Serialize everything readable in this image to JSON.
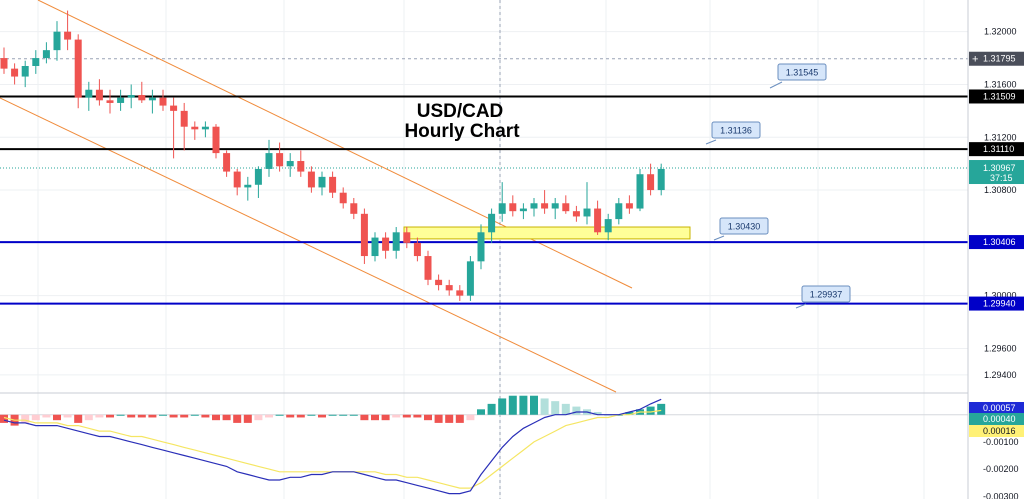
{
  "chart_data": {
    "type": "candlestick",
    "title": "USD/CAD",
    "subtitle": "Hourly Chart",
    "price_axis": {
      "ticks": [
        "1.32000",
        "1.31600",
        "1.31200",
        "1.30800",
        "1.30400",
        "1.30000",
        "1.29600",
        "1.29400"
      ],
      "tick_values": [
        1.32,
        1.316,
        1.312,
        1.308,
        1.304,
        1.3,
        1.296,
        1.294
      ],
      "range": [
        1.2927,
        1.3224
      ]
    },
    "current_price": {
      "label": "1.30967",
      "value": 1.30967,
      "countdown": "37:15"
    },
    "crosshair": {
      "label": "1.31795",
      "value": 1.31795
    },
    "horizontal_levels": [
      {
        "label": "1.31509",
        "value": 1.31509,
        "color": "#000000"
      },
      {
        "label": "1.31110",
        "value": 1.3111,
        "color": "#000000"
      },
      {
        "label": "1.30406",
        "value": 1.30406,
        "color": "#0000c8"
      },
      {
        "label": "1.29940",
        "value": 1.2994,
        "color": "#0000c8"
      }
    ],
    "callouts": [
      {
        "label": "1.31545",
        "value": 1.31545
      },
      {
        "label": "1.31136",
        "value": 1.31136
      },
      {
        "label": "1.30430",
        "value": 1.3043
      },
      {
        "label": "1.29937",
        "value": 1.29937
      }
    ],
    "zone": {
      "low": 1.3043,
      "high": 1.3052,
      "color": "#ffff99"
    },
    "channel_color": "#f08c3c",
    "up_color": "#26a69a",
    "down_color": "#ef5350",
    "candles": [
      [
        1.318,
        1.3188,
        1.3168,
        1.3172
      ],
      [
        1.3172,
        1.3176,
        1.316,
        1.3166
      ],
      [
        1.3166,
        1.3178,
        1.3158,
        1.3174
      ],
      [
        1.3174,
        1.3186,
        1.3168,
        1.318
      ],
      [
        1.318,
        1.3192,
        1.3176,
        1.3186
      ],
      [
        1.3186,
        1.3208,
        1.3178,
        1.32
      ],
      [
        1.32,
        1.3216,
        1.3186,
        1.3194
      ],
      [
        1.3194,
        1.3198,
        1.3142,
        1.315
      ],
      [
        1.315,
        1.3162,
        1.314,
        1.3156
      ],
      [
        1.3156,
        1.3164,
        1.3144,
        1.3148
      ],
      [
        1.3148,
        1.3156,
        1.3138,
        1.3146
      ],
      [
        1.3146,
        1.3156,
        1.314,
        1.315
      ],
      [
        1.315,
        1.316,
        1.3142,
        1.3152
      ],
      [
        1.3152,
        1.3162,
        1.3146,
        1.3148
      ],
      [
        1.3148,
        1.3156,
        1.3138,
        1.315
      ],
      [
        1.315,
        1.3156,
        1.314,
        1.3144
      ],
      [
        1.3144,
        1.315,
        1.3104,
        1.314
      ],
      [
        1.314,
        1.3146,
        1.311,
        1.3128
      ],
      [
        1.3128,
        1.3132,
        1.3118,
        1.3126
      ],
      [
        1.3126,
        1.3132,
        1.312,
        1.3128
      ],
      [
        1.3128,
        1.313,
        1.3104,
        1.3108
      ],
      [
        1.3108,
        1.311,
        1.309,
        1.3094
      ],
      [
        1.3094,
        1.3096,
        1.3076,
        1.3082
      ],
      [
        1.3082,
        1.309,
        1.3072,
        1.3084
      ],
      [
        1.3084,
        1.3098,
        1.3074,
        1.3096
      ],
      [
        1.3096,
        1.3118,
        1.309,
        1.3108
      ],
      [
        1.3108,
        1.3116,
        1.3094,
        1.3098
      ],
      [
        1.3098,
        1.3108,
        1.309,
        1.3102
      ],
      [
        1.3102,
        1.311,
        1.309,
        1.3094
      ],
      [
        1.3094,
        1.3098,
        1.3078,
        1.3082
      ],
      [
        1.3082,
        1.3094,
        1.3076,
        1.309
      ],
      [
        1.309,
        1.3094,
        1.3074,
        1.3078
      ],
      [
        1.3078,
        1.3082,
        1.3066,
        1.307
      ],
      [
        1.307,
        1.3074,
        1.3058,
        1.3062
      ],
      [
        1.3062,
        1.3066,
        1.3024,
        1.303
      ],
      [
        1.303,
        1.3048,
        1.3026,
        1.3044
      ],
      [
        1.3044,
        1.3048,
        1.3028,
        1.3034
      ],
      [
        1.3034,
        1.3052,
        1.3028,
        1.3048
      ],
      [
        1.3048,
        1.3052,
        1.3036,
        1.304
      ],
      [
        1.304,
        1.3044,
        1.3026,
        1.303
      ],
      [
        1.303,
        1.3034,
        1.3008,
        1.3012
      ],
      [
        1.3012,
        1.3016,
        1.3004,
        1.3008
      ],
      [
        1.3008,
        1.3012,
        1.3,
        1.3004
      ],
      [
        1.3004,
        1.3008,
        1.2996,
        1.3
      ],
      [
        1.3,
        1.303,
        1.2996,
        1.3026
      ],
      [
        1.3026,
        1.3054,
        1.302,
        1.3048
      ],
      [
        1.3048,
        1.3066,
        1.304,
        1.3062
      ],
      [
        1.3062,
        1.3086,
        1.3056,
        1.307
      ],
      [
        1.307,
        1.3076,
        1.306,
        1.3064
      ],
      [
        1.3064,
        1.307,
        1.3058,
        1.3066
      ],
      [
        1.3066,
        1.3074,
        1.306,
        1.307
      ],
      [
        1.307,
        1.308,
        1.3062,
        1.3066
      ],
      [
        1.3066,
        1.3074,
        1.3058,
        1.307
      ],
      [
        1.307,
        1.3076,
        1.3062,
        1.3064
      ],
      [
        1.3064,
        1.3068,
        1.3056,
        1.306
      ],
      [
        1.306,
        1.3086,
        1.3054,
        1.3066
      ],
      [
        1.3066,
        1.3072,
        1.3046,
        1.3048
      ],
      [
        1.3048,
        1.3062,
        1.3042,
        1.3058
      ],
      [
        1.3058,
        1.3074,
        1.3054,
        1.307
      ],
      [
        1.307,
        1.3076,
        1.3062,
        1.3066
      ],
      [
        1.3066,
        1.3096,
        1.3064,
        1.3092
      ],
      [
        1.3092,
        1.31,
        1.3076,
        1.308
      ],
      [
        1.308,
        1.31,
        1.3076,
        1.3096
      ]
    ],
    "indicator": {
      "axis_ticks": [
        "0.00057",
        "0.00040",
        "0.00016",
        "-0.00100",
        "-0.00200",
        "-0.00300"
      ],
      "axis_tick_values": [
        0.00057,
        0.0004,
        0.00016,
        -0.001,
        -0.002,
        -0.003
      ],
      "range": [
        -0.0031,
        0.0008
      ],
      "badges": [
        {
          "label": "0.00057",
          "bg": "#1e2ad6",
          "fg": "#ffffff"
        },
        {
          "label": "0.00040",
          "bg": "#26a69a",
          "fg": "#ffffff"
        },
        {
          "label": "0.00016",
          "bg": "#fff176",
          "fg": "#131722"
        }
      ],
      "histogram": [
        -0.0003,
        -0.0004,
        -0.0003,
        -0.0002,
        -0.0001,
        -0.0002,
        -0.0001,
        -0.0003,
        -0.0002,
        -0.0001,
        -0.0001,
        0,
        -0.0001,
        -0.0001,
        -0.0001,
        0,
        -0.0001,
        -0.0001,
        0,
        -0.0001,
        -0.0002,
        -0.0002,
        -0.0003,
        -0.0003,
        -0.0002,
        -0.0001,
        0,
        -0.0001,
        -0.0001,
        0,
        -0.0001,
        0,
        0,
        0,
        -0.0002,
        -0.0002,
        -0.0002,
        -0.0001,
        -0.0001,
        -0.0001,
        -0.0002,
        -0.0003,
        -0.0003,
        -0.0003,
        -0.0002,
        0.0002,
        0.0004,
        0.0006,
        0.0007,
        0.0007,
        0.0007,
        0.0006,
        0.0005,
        0.0004,
        0.0003,
        0.0002,
        0.0001,
        0,
        0,
        0.0001,
        0.0002,
        0.0003,
        0.0004
      ],
      "macd": [
        -0.0002,
        -0.0003,
        -0.0003,
        -0.0004,
        -0.0004,
        -0.0004,
        -0.0005,
        -0.0006,
        -0.0007,
        -0.0008,
        -0.0008,
        -0.0009,
        -0.001,
        -0.0011,
        -0.0012,
        -0.0013,
        -0.0014,
        -0.0015,
        -0.0016,
        -0.0017,
        -0.0018,
        -0.0019,
        -0.0021,
        -0.0022,
        -0.0023,
        -0.0024,
        -0.0024,
        -0.0023,
        -0.0023,
        -0.0022,
        -0.0022,
        -0.0021,
        -0.0021,
        -0.0021,
        -0.0022,
        -0.0023,
        -0.0024,
        -0.0024,
        -0.0025,
        -0.0026,
        -0.0027,
        -0.0028,
        -0.0029,
        -0.0029,
        -0.0028,
        -0.0022,
        -0.0017,
        -0.0012,
        -0.0008,
        -0.0005,
        -0.0003,
        -0.0001,
        0,
        0,
        0.0001,
        0.0001,
        0,
        0,
        0,
        0.0001,
        0.0002,
        0.0004,
        0.00057
      ],
      "signal": [
        -0.0001,
        -0.0002,
        -0.0002,
        -0.0003,
        -0.0003,
        -0.0003,
        -0.0004,
        -0.0004,
        -0.0005,
        -0.0006,
        -0.0006,
        -0.0007,
        -0.0008,
        -0.0008,
        -0.0009,
        -0.001,
        -0.0011,
        -0.0012,
        -0.0013,
        -0.0014,
        -0.0015,
        -0.0016,
        -0.0017,
        -0.0018,
        -0.0019,
        -0.002,
        -0.0021,
        -0.0021,
        -0.0021,
        -0.0021,
        -0.0021,
        -0.0021,
        -0.0021,
        -0.0021,
        -0.0021,
        -0.0021,
        -0.0022,
        -0.0022,
        -0.0023,
        -0.0023,
        -0.0024,
        -0.0025,
        -0.0026,
        -0.0027,
        -0.0027,
        -0.0025,
        -0.0022,
        -0.0019,
        -0.0016,
        -0.0013,
        -0.001,
        -0.0008,
        -0.0006,
        -0.0004,
        -0.0003,
        -0.0002,
        -0.0001,
        -0.0001,
        0,
        0,
        0.0001,
        0.0001,
        0.00016
      ]
    }
  }
}
